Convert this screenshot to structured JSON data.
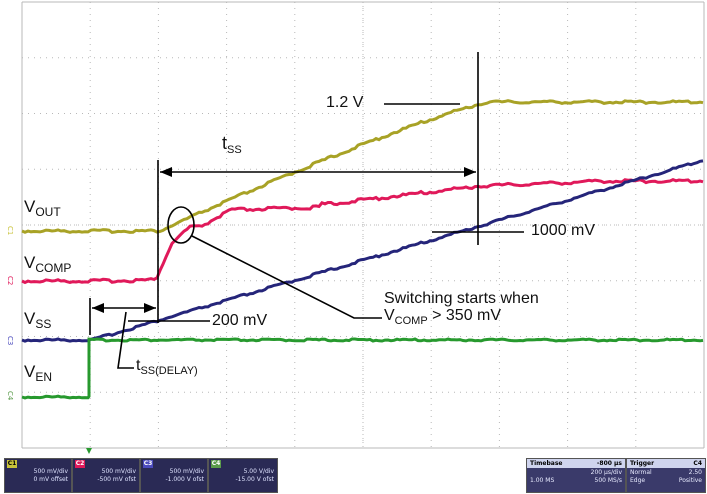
{
  "labels": {
    "vout": {
      "main": "V",
      "sub": "OUT"
    },
    "vcomp": {
      "main": "V",
      "sub": "COMP"
    },
    "vss": {
      "main": "V",
      "sub": "SS"
    },
    "ven": {
      "main": "V",
      "sub": "EN"
    }
  },
  "annotations": {
    "v12": "1.2 V",
    "tss": {
      "main": "t",
      "sub": "SS"
    },
    "mv1000": "1000 mV",
    "mv200": "200 mV",
    "tss_delay": {
      "main": "t",
      "sub": "SS(DELAY)"
    },
    "switching_line1": "Switching starts when",
    "switching_line2_main": "V",
    "switching_line2_sub": "COMP",
    "switching_line2_rest": " > 350 mV"
  },
  "channel_markers": [
    "C1",
    "C2",
    "C3",
    "C4"
  ],
  "colors": {
    "vout": "#a8a226",
    "vcomp": "#e0195a",
    "vss": "#25257a",
    "ven": "#27992e",
    "grid": "#b8b8b8",
    "ch1_tag": "#c8c23a",
    "ch2_tag": "#e0195a",
    "ch3_tag": "#4b4bbd",
    "ch4_tag": "#5a9b4a"
  },
  "status": {
    "channels": [
      {
        "tag": "C1",
        "title": "",
        "rows": [
          "500 mV/div",
          "0 mV offset"
        ]
      },
      {
        "tag": "C2",
        "title": "",
        "rows": [
          "500 mV/div",
          "-500 mV ofst"
        ]
      },
      {
        "tag": "C3",
        "title": "",
        "rows": [
          "500 mV/div",
          "-1.000 V ofst"
        ]
      },
      {
        "tag": "C4",
        "title": "",
        "rows": [
          "5.00 V/div",
          "-15.00 V ofst"
        ]
      }
    ],
    "timebase": {
      "title": "Timebase",
      "offset": "-800 µs",
      "cells": [
        "",
        "200 µs/div",
        "1.00 MS",
        "500 MS/s"
      ]
    },
    "trigger": {
      "title": "Trigger",
      "source": "C4",
      "cells": [
        "Normal",
        "2.50",
        "Edge",
        "Positive"
      ]
    }
  }
}
